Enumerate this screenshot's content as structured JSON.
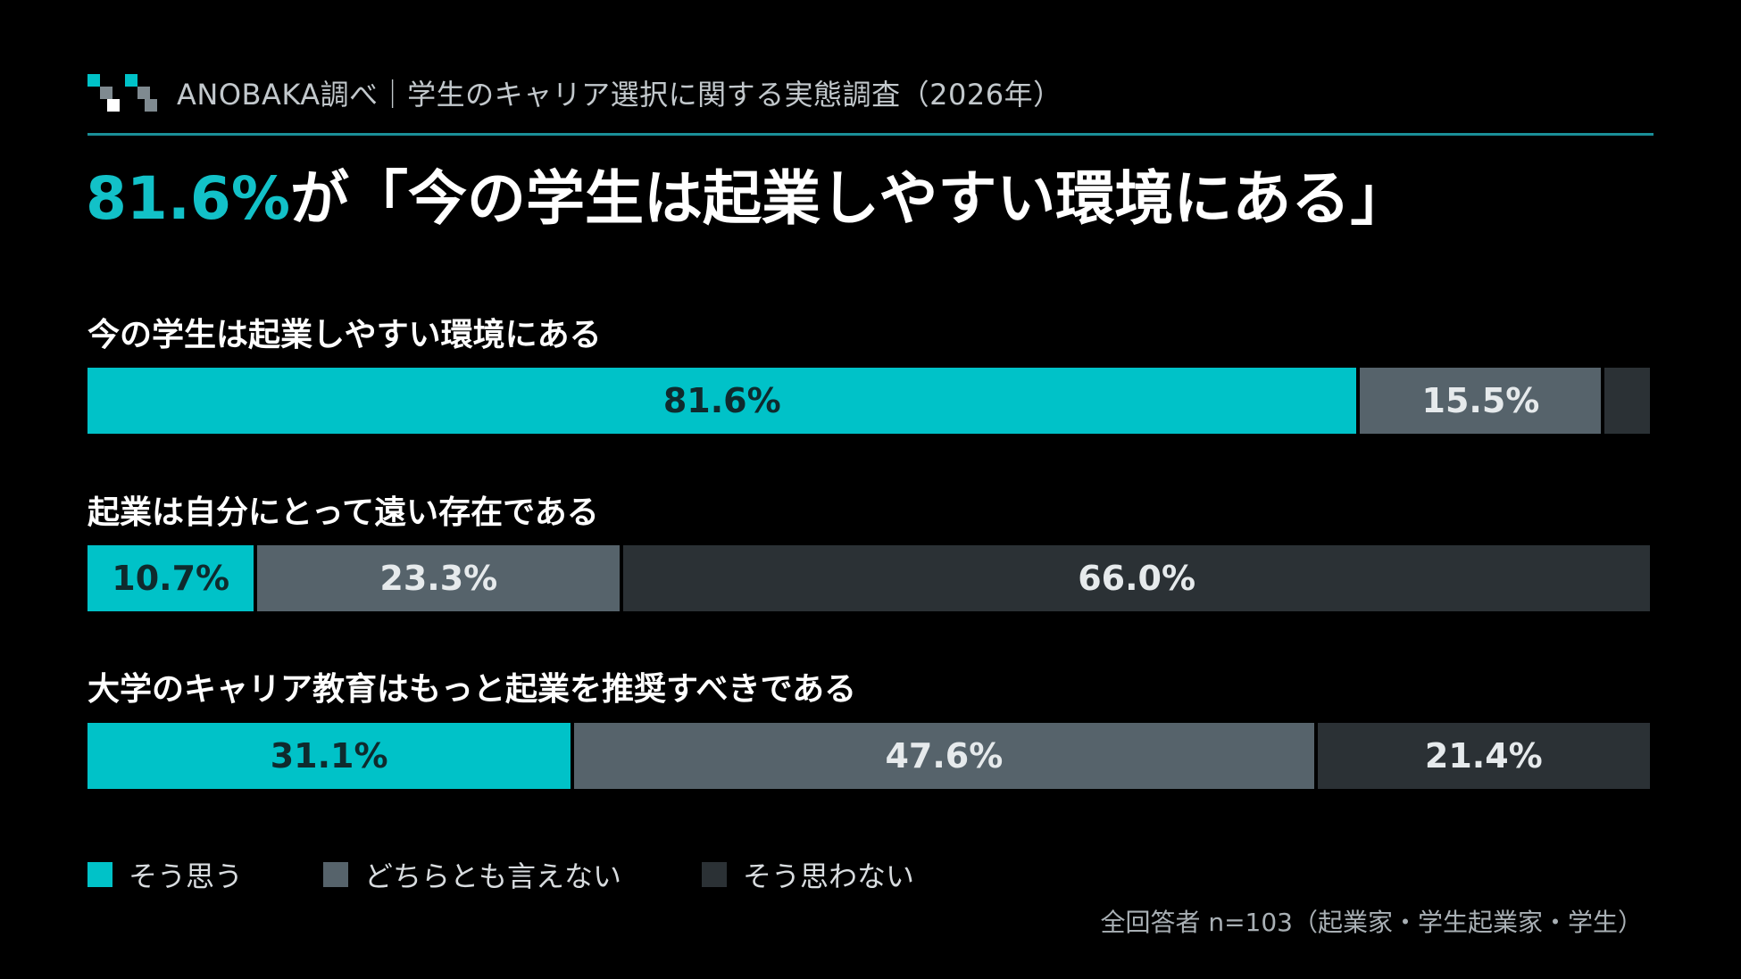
{
  "header": {
    "title": "ANOBAKA調べ｜学生のキャリア選択に関する実態調査（2026年）"
  },
  "headline": {
    "accent": "81.6%",
    "rest": "が「今の学生は起業しやすい環境にある」"
  },
  "colors": {
    "agree": "#00c2c8",
    "neutral": "#56636b",
    "disagree": "#2b3135",
    "accent_text": "#12c1c8"
  },
  "chart_data": {
    "type": "bar",
    "stacked": true,
    "orientation": "horizontal",
    "categories": [
      "今の学生は起業しやすい環境にある",
      "起業は自分にとって遠い存在である",
      "大学のキャリア教育はもっと起業を推奨すべきである"
    ],
    "series": [
      {
        "name": "そう思う",
        "values": [
          81.6,
          10.7,
          31.1
        ],
        "labels": [
          "81.6%",
          "10.7%",
          "31.1%"
        ]
      },
      {
        "name": "どちらとも言えない",
        "values": [
          15.5,
          23.3,
          47.6
        ],
        "labels": [
          "15.5%",
          "23.3%",
          "47.6%"
        ]
      },
      {
        "name": "そう思わない",
        "values": [
          2.9,
          66.0,
          21.4
        ],
        "labels": [
          "",
          "66.0%",
          "21.4%"
        ]
      }
    ],
    "xlim": [
      0,
      100
    ],
    "legend_position": "bottom-left"
  },
  "footnote": "全回答者 n=103（起業家・学生起業家・学生）"
}
